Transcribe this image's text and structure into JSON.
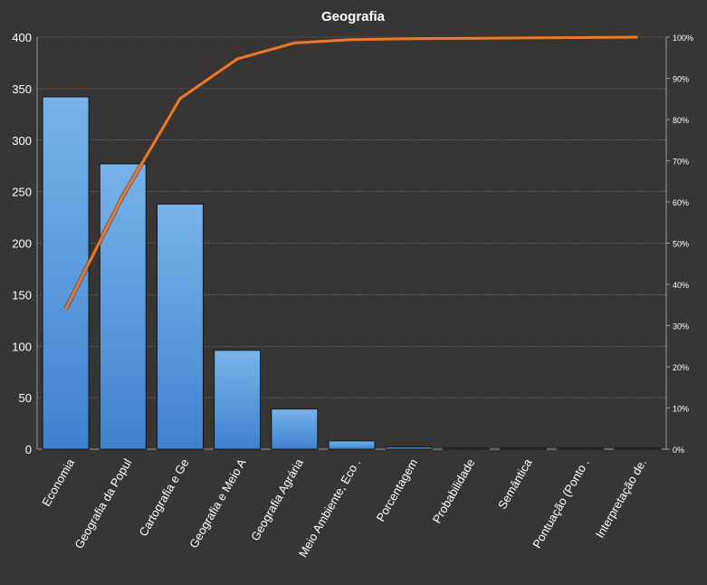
{
  "chart_data": {
    "type": "bar",
    "title": "Geografia",
    "xlabel": "",
    "ylabel": "",
    "categories": [
      "Economia",
      "Geografia da Popul",
      "Cartografia e Ge",
      "Geografia e Meio A",
      "Geografia Agrária",
      "Meio Ambiente, Eco .",
      "Porcentagem",
      "Probabilidade",
      "Semântica",
      "Pontuação (Ponto .",
      "Interpretação de."
    ],
    "series": [
      {
        "type": "bar",
        "values": [
          342,
          277,
          238,
          96,
          39,
          8,
          2,
          1,
          1,
          1,
          1
        ]
      },
      {
        "type": "line",
        "axis": "right",
        "values": [
          0.34,
          0.615,
          0.851,
          0.947,
          0.986,
          0.994,
          0.996,
          0.997,
          0.998,
          0.999,
          1.0
        ]
      }
    ],
    "ylim": [
      0,
      400
    ],
    "yticks": [
      0,
      50,
      100,
      150,
      200,
      250,
      300,
      350,
      400
    ],
    "y2lim": [
      0,
      1
    ],
    "y2ticks": [
      "0%",
      "10%",
      "20%",
      "30%",
      "40%",
      "50%",
      "60%",
      "70%",
      "80%",
      "90%",
      "100%"
    ],
    "grid": true,
    "legend": "none",
    "colors": {
      "background": "#383634",
      "bar_top": "#78b2ea",
      "bar_bottom": "#3e83cf",
      "bar_outline": "#141414",
      "line": "#e87a31",
      "text": "#ffffff",
      "grid": "#9a9a9a"
    }
  }
}
